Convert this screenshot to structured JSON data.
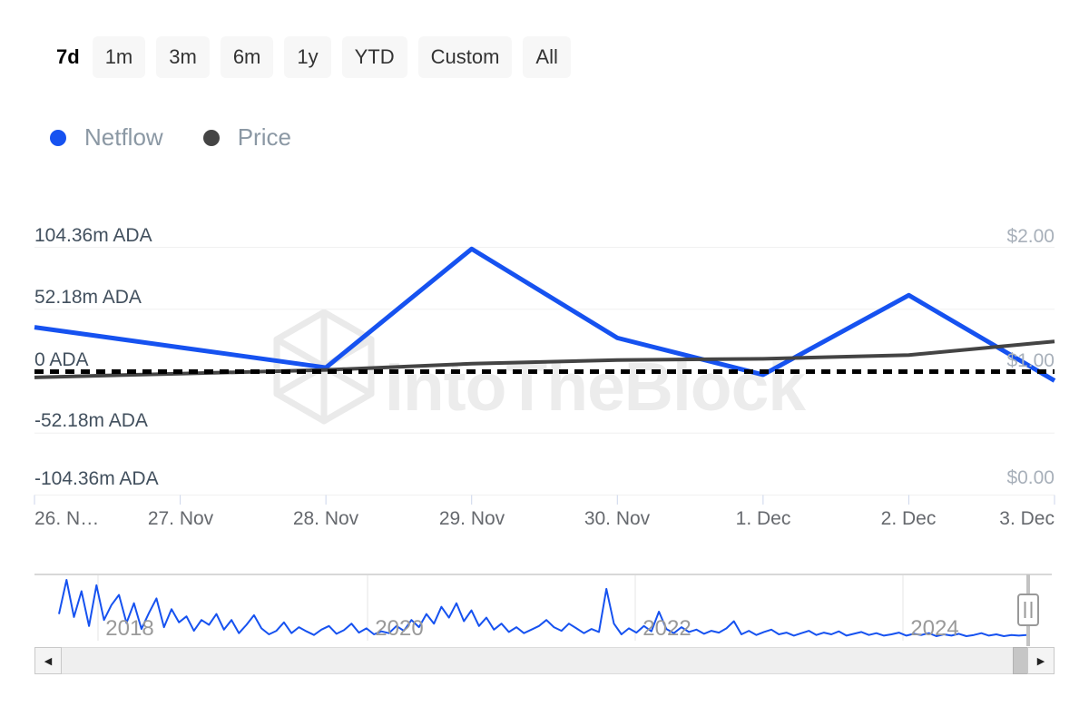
{
  "range_selector": {
    "items": [
      {
        "label": "7d",
        "selected": true
      },
      {
        "label": "1m",
        "selected": false
      },
      {
        "label": "3m",
        "selected": false
      },
      {
        "label": "6m",
        "selected": false
      },
      {
        "label": "1y",
        "selected": false
      },
      {
        "label": "YTD",
        "selected": false
      },
      {
        "label": "Custom",
        "selected": false
      },
      {
        "label": "All",
        "selected": false
      }
    ]
  },
  "legend": {
    "items": [
      {
        "label": "Netflow",
        "color": "#1652f0"
      },
      {
        "label": "Price",
        "color": "#444444"
      }
    ]
  },
  "watermark": {
    "text": "IntoTheBlock"
  },
  "chart_data": {
    "type": "line",
    "title": "",
    "categories": [
      "26. Nov",
      "27. Nov",
      "28. Nov",
      "29. Nov",
      "30. Nov",
      "1. Dec",
      "2. Dec",
      "3. Dec"
    ],
    "x_tick_labels": [
      "26. N…",
      "27. Nov",
      "28. Nov",
      "29. Nov",
      "30. Nov",
      "1. Dec",
      "2. Dec",
      "3. Dec"
    ],
    "y_axis_left": {
      "unit": "m ADA",
      "tick_labels": [
        "104.36m ADA",
        "52.18m ADA",
        "0 ADA",
        "-52.18m ADA",
        "-104.36m ADA"
      ],
      "tick_values": [
        104.36,
        52.18,
        0,
        -52.18,
        -104.36
      ],
      "ylim": [
        -104.36,
        104.36
      ]
    },
    "y_axis_right": {
      "unit": "USD",
      "tick_labels": [
        "$2.00",
        "$1.00",
        "$0.00"
      ],
      "tick_values": [
        2.0,
        1.0,
        0.0
      ],
      "ylim": [
        0,
        2
      ]
    },
    "series": [
      {
        "name": "Netflow",
        "axis": "left",
        "color": "#1652f0",
        "unit": "m ADA",
        "values": [
          37,
          20,
          3,
          103,
          28,
          -3,
          64,
          -8
        ]
      },
      {
        "name": "Price",
        "axis": "right",
        "color": "#444444",
        "unit": "USD",
        "values": [
          0.95,
          0.98,
          1.01,
          1.06,
          1.09,
          1.1,
          1.13,
          1.24
        ]
      }
    ],
    "zero_line_style": "dotted-black",
    "grid": true,
    "legend_position": "top-left"
  },
  "navigator": {
    "type": "line",
    "series_name": "Netflow history",
    "color": "#1652f0",
    "year_labels": [
      "2018",
      "2020",
      "2022",
      "2024"
    ],
    "values": [
      40,
      97,
      35,
      78,
      20,
      88,
      30,
      55,
      72,
      25,
      58,
      15,
      42,
      66,
      18,
      48,
      26,
      36,
      12,
      30,
      22,
      40,
      14,
      30,
      8,
      22,
      38,
      16,
      6,
      12,
      26,
      8,
      18,
      11,
      5,
      14,
      20,
      7,
      13,
      24,
      9,
      16,
      6,
      11,
      8,
      20,
      12,
      30,
      18,
      40,
      24,
      52,
      34,
      58,
      28,
      46,
      20,
      34,
      14,
      24,
      10,
      18,
      8,
      14,
      20,
      30,
      18,
      12,
      24,
      16,
      8,
      15,
      10,
      82,
      24,
      6,
      16,
      9,
      20,
      11,
      44,
      15,
      8,
      18,
      10,
      14,
      7,
      12,
      9,
      16,
      28,
      6,
      12,
      5,
      10,
      14,
      6,
      9,
      4,
      8,
      12,
      5,
      9,
      6,
      11,
      4,
      7,
      10,
      5,
      8,
      4,
      6,
      9,
      4,
      7,
      5,
      8,
      3,
      6,
      4,
      7,
      3,
      5,
      8,
      4,
      6,
      3,
      5,
      4,
      5
    ]
  },
  "scrollbar": {
    "left_arrow": "◀",
    "right_arrow": "▶"
  }
}
